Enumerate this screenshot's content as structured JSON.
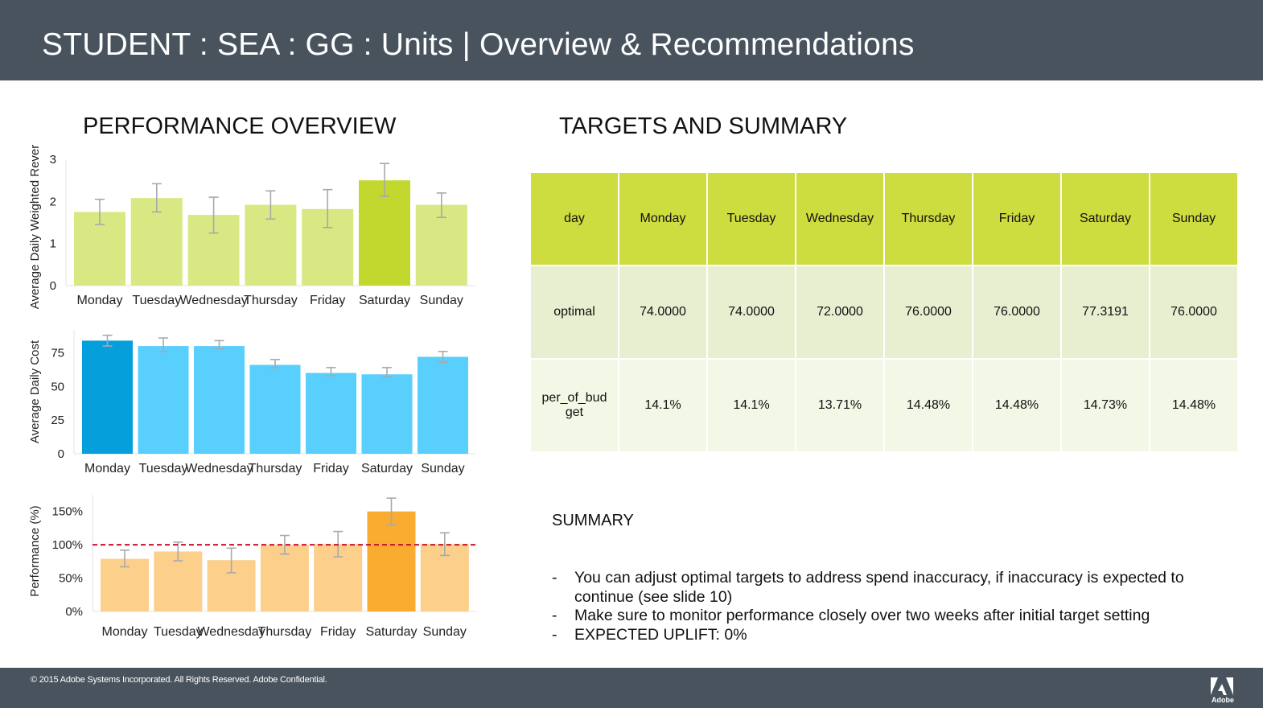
{
  "header": {
    "title": "STUDENT : SEA : GG : Units | Overview & Recommendations"
  },
  "performance_overview": {
    "title": "PERFORMANCE OVERVIEW"
  },
  "targets_section": {
    "title": "TARGETS AND SUMMARY"
  },
  "colors": {
    "header_bg": "#48535e",
    "green_light": "#d9e883",
    "green_dark": "#c2d82f",
    "blue_light": "#59cffd",
    "blue_dark": "#059fdc",
    "orange_light": "#fcd08a",
    "orange_dark": "#f9ac30",
    "table_head": "#cddc3e",
    "reference_line": "#c8102e"
  },
  "chart_data": [
    {
      "type": "bar",
      "ylabel": "Average Daily Weighted Rever",
      "categories": [
        "Monday",
        "Tuesday",
        "Wednesday",
        "Thursday",
        "Friday",
        "Saturday",
        "Sunday"
      ],
      "values": [
        1.75,
        2.08,
        1.68,
        1.92,
        1.82,
        2.5,
        1.92
      ],
      "error_low": [
        1.45,
        1.75,
        1.25,
        1.58,
        1.38,
        2.12,
        1.62
      ],
      "error_high": [
        2.05,
        2.42,
        2.1,
        2.25,
        2.28,
        2.9,
        2.2
      ],
      "highlight_index": 5,
      "ylim": [
        0,
        3
      ],
      "yticks": [
        "0",
        "1",
        "2",
        "3"
      ],
      "grid": false
    },
    {
      "type": "bar",
      "ylabel": "Average Daily Cost",
      "categories": [
        "Monday",
        "Tuesday",
        "Wednesday",
        "Thursday",
        "Friday",
        "Saturday",
        "Sunday"
      ],
      "values": [
        84,
        80,
        80,
        66,
        60,
        59,
        72
      ],
      "error_low": [
        80,
        76,
        78,
        64,
        58,
        57,
        68
      ],
      "error_high": [
        88,
        86,
        84,
        70,
        64,
        64,
        76
      ],
      "highlight_index": 0,
      "ylim": [
        0,
        92
      ],
      "yticks": [
        "0",
        "25",
        "50",
        "75"
      ],
      "grid": false
    },
    {
      "type": "bar",
      "ylabel": "Performance (%)",
      "categories": [
        "Monday",
        "Tuesday",
        "Wednesday",
        "Thursday",
        "Friday",
        "Saturday",
        "Sunday"
      ],
      "values": [
        79,
        90,
        77,
        100,
        101,
        150,
        101
      ],
      "error_low": [
        67,
        76,
        58,
        86,
        82,
        130,
        84
      ],
      "error_high": [
        92,
        104,
        95,
        114,
        120,
        170,
        118
      ],
      "highlight_index": 5,
      "reference_line": 100,
      "ylim": [
        0,
        175
      ],
      "yticks": [
        "0%",
        "50%",
        "100%",
        "150%"
      ],
      "grid": false
    }
  ],
  "targets_table": {
    "header": [
      "day",
      "Monday",
      "Tuesday",
      "Wednesday",
      "Thursday",
      "Friday",
      "Saturday",
      "Sunday"
    ],
    "rows": [
      [
        "optimal",
        "74.0000",
        "74.0000",
        "72.0000",
        "76.0000",
        "76.0000",
        "77.3191",
        "76.0000"
      ],
      [
        "per_of_bud get",
        "14.1%",
        "14.1%",
        "13.71%",
        "14.48%",
        "14.48%",
        "14.73%",
        "14.48%"
      ]
    ]
  },
  "summary": {
    "title": "SUMMARY",
    "items": [
      "You can adjust optimal targets to address spend inaccuracy, if inaccuracy is expected to continue (see slide 10)",
      "Make sure to monitor performance closely over two weeks after initial target setting",
      "EXPECTED UPLIFT: 0%"
    ]
  },
  "footer": {
    "copyright": "© 2015 Adobe Systems Incorporated.  All Rights Reserved.  Adobe Confidential.",
    "logo_text": "Adobe",
    "logo_icon": "adobe-logo-icon"
  }
}
